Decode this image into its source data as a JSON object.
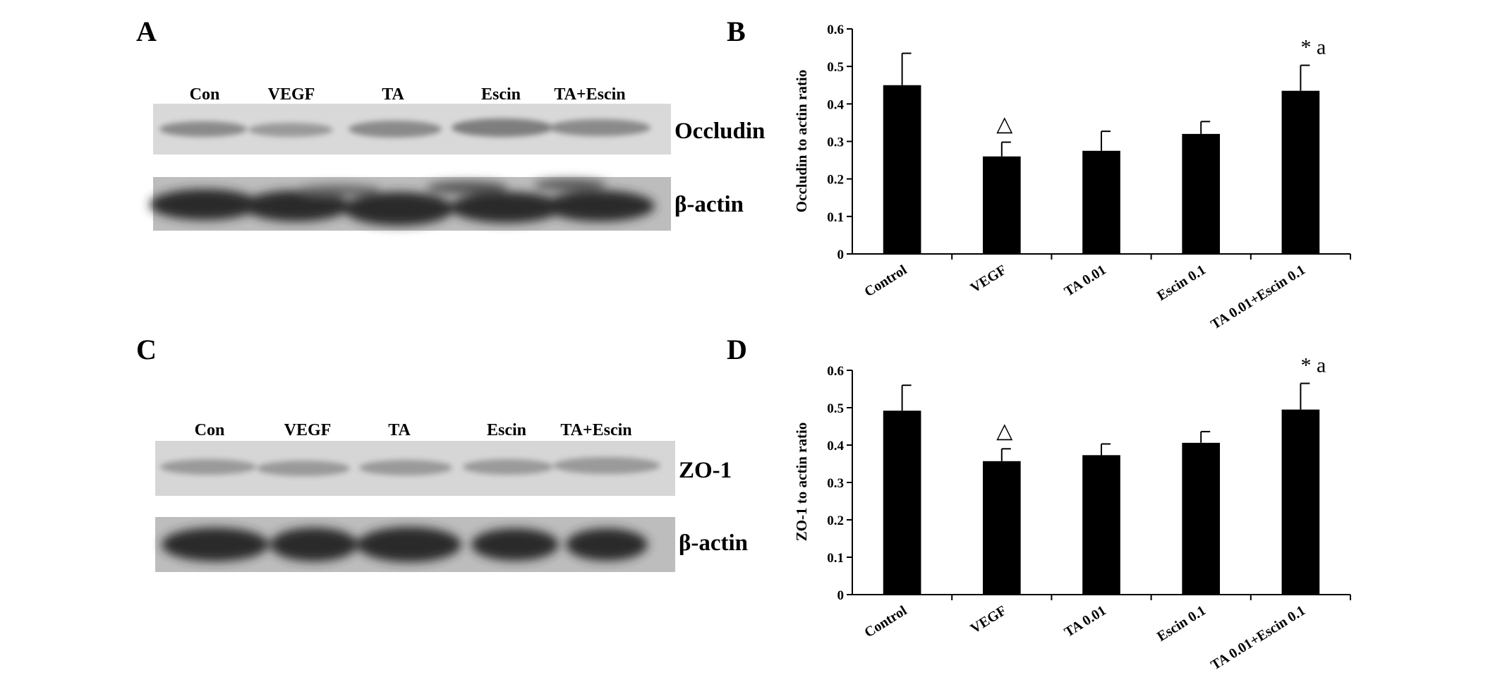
{
  "panels": {
    "A": "A",
    "B": "B",
    "C": "C",
    "D": "D"
  },
  "blots": [
    {
      "id": "A",
      "lanes": [
        "Con",
        "VEGF",
        "TA",
        "Escin",
        "TA+Escin"
      ],
      "rows": [
        {
          "protein": "Occludin",
          "kind": "faint"
        },
        {
          "protein": "β-actin",
          "kind": "strong"
        }
      ]
    },
    {
      "id": "C",
      "lanes": [
        "Con",
        "VEGF",
        "TA",
        "Escin",
        "TA+Escin"
      ],
      "rows": [
        {
          "protein": "ZO-1",
          "kind": "faint"
        },
        {
          "protein": "β-actin",
          "kind": "strong"
        }
      ]
    }
  ],
  "chart_data": [
    {
      "type": "bar",
      "panel": "B",
      "categories": [
        "Control",
        "VEGF",
        "TA 0.01",
        "Escin 0.1",
        "TA 0.01+Escin 0.1"
      ],
      "values": [
        0.45,
        0.26,
        0.275,
        0.32,
        0.435
      ],
      "errors": [
        0.085,
        0.038,
        0.052,
        0.033,
        0.068
      ],
      "annotations": [
        "",
        "△",
        "",
        "",
        "* a"
      ],
      "ylabel": "Occludin to actin ratio",
      "ylim": [
        0,
        0.6
      ],
      "yticks": [
        "0",
        "0.1",
        "0.2",
        "0.3",
        "0.4",
        "0.5",
        "0.6"
      ],
      "bar_color": "#000000"
    },
    {
      "type": "bar",
      "panel": "D",
      "categories": [
        "Control",
        "VEGF",
        "TA 0.01",
        "Escin 0.1",
        "TA 0.01+Escin 0.1"
      ],
      "values": [
        0.492,
        0.357,
        0.373,
        0.406,
        0.495
      ],
      "errors": [
        0.068,
        0.033,
        0.03,
        0.03,
        0.07
      ],
      "annotations": [
        "",
        "△",
        "",
        "",
        "* a"
      ],
      "ylabel": "ZO-1 to actin ratio",
      "ylim": [
        0,
        0.6
      ],
      "yticks": [
        "0",
        "0.1",
        "0.2",
        "0.3",
        "0.4",
        "0.5",
        "0.6"
      ],
      "bar_color": "#000000"
    }
  ]
}
